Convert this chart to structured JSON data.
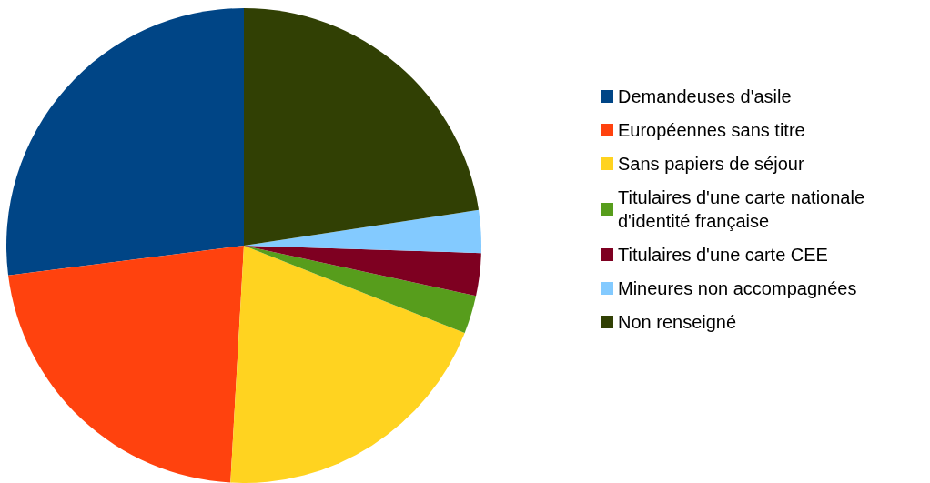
{
  "chart_data": {
    "type": "pie",
    "categories": [
      "Demandeuses d'asile",
      "Européennes sans titre",
      "Sans papiers de séjour",
      "Titulaires d'une carte nationale d'identité française",
      "Titulaires d'une carte CEE",
      "Mineures non accompagnées",
      "Non renseigné"
    ],
    "values": [
      27.0,
      22.1,
      19.9,
      2.6,
      2.9,
      2.9,
      22.6
    ],
    "colors": [
      "#004586",
      "#ff420e",
      "#ffd320",
      "#579d1c",
      "#7e0021",
      "#83caff",
      "#314004"
    ],
    "legend": "right"
  }
}
